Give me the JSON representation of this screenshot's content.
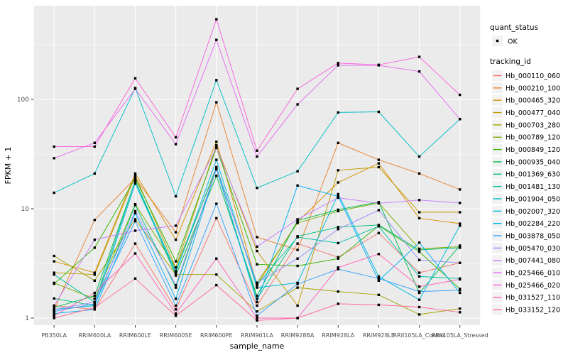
{
  "figure": {
    "background": "#FFFFFF",
    "panel_fill": "#EBEBEB",
    "grid_color": "#FFFFFF",
    "tick_color": "#333333",
    "tick_label_color": "#4D4D4D",
    "point_color": "#000000"
  },
  "legend": {
    "quant_status_title": "quant_status",
    "quant_status_items": [
      {
        "label": "OK",
        "marker": "black-square"
      }
    ],
    "tracking_id_title": "tracking_id",
    "key_fill": "#F2F2F2"
  },
  "chart_data": {
    "type": "line",
    "title": "",
    "xlabel": "sample_name",
    "ylabel": "FPKM + 1",
    "y_scale": "log10",
    "ylim": [
      0.86,
      760
    ],
    "y_tick_values": [
      1,
      10,
      100
    ],
    "y_tick_labels": [
      "1",
      "10",
      "100"
    ],
    "y_minor_values": [
      3.1623,
      31.623,
      316.23
    ],
    "grid": true,
    "legend_position": "right",
    "point_shape": "square",
    "categories": [
      "PB350LA",
      "RRIM600LA",
      "RRIM600LE",
      "RRIM600SE",
      "RRIM600PE",
      "RRIM901LA",
      "RRIM928BA",
      "RRIM928LA",
      "RRIM928LE",
      "RRII105LA_Control",
      "RRII105LA_Stressed"
    ],
    "series": [
      {
        "name": "Hb_000110_060",
        "color": "#F8766D",
        "values": [
          1.3,
          1.2,
          4.8,
          1.2,
          8.2,
          1.3,
          4.8,
          3.6,
          6.0,
          2.6,
          3.2
        ]
      },
      {
        "name": "Hb_000210_100",
        "color": "#EA8331",
        "values": [
          1.2,
          7.9,
          19,
          6.1,
          94,
          5.5,
          4.2,
          40,
          28,
          21,
          15
        ]
      },
      {
        "name": "Hb_000465_320",
        "color": "#D89000",
        "values": [
          3.3,
          2.6,
          21,
          5.2,
          41,
          2.0,
          7.6,
          17.4,
          26,
          8.2,
          7.3
        ]
      },
      {
        "name": "Hb_000477_040",
        "color": "#C09B00",
        "values": [
          2.6,
          2.5,
          20,
          2.9,
          38,
          4.1,
          1.3,
          22.5,
          24,
          9.3,
          9.3
        ]
      },
      {
        "name": "Hb_000703_280",
        "color": "#A3A500",
        "values": [
          3.7,
          2.2,
          8.0,
          2.5,
          2.5,
          1.15,
          1.9,
          1.75,
          1.63,
          1.08,
          1.22
        ]
      },
      {
        "name": "Hb_000789_120",
        "color": "#7CAE00",
        "values": [
          2.1,
          1.5,
          11,
          2.9,
          23,
          2.1,
          7.4,
          9.5,
          11.3,
          4.3,
          4.5
        ]
      },
      {
        "name": "Hb_000849_120",
        "color": "#39B600",
        "values": [
          2.06,
          4.4,
          19,
          3.3,
          36,
          3.1,
          3.0,
          3.5,
          7.0,
          4.05,
          1.85
        ]
      },
      {
        "name": "Hb_000935_040",
        "color": "#00BB4E",
        "values": [
          1.25,
          1.6,
          18,
          2.45,
          20,
          1.6,
          7.8,
          9.8,
          11.5,
          1.7,
          4.6
        ]
      },
      {
        "name": "Hb_001369_630",
        "color": "#00BF7D",
        "values": [
          1.51,
          1.3,
          10.8,
          1.9,
          23,
          1.5,
          5.6,
          6.8,
          7.1,
          4.2,
          4.4
        ]
      },
      {
        "name": "Hb_001481_130",
        "color": "#00C1A3",
        "values": [
          2.5,
          1.4,
          18,
          2.7,
          24,
          2.0,
          5.5,
          4.85,
          6.9,
          2.4,
          2.3
        ]
      },
      {
        "name": "Hb_001904_050",
        "color": "#00BFC4",
        "values": [
          14,
          21,
          127,
          13,
          150,
          15.5,
          22,
          76,
          77,
          30,
          66
        ]
      },
      {
        "name": "Hb_002007_320",
        "color": "#00BAE0",
        "values": [
          1.2,
          1.3,
          17,
          2.6,
          28,
          1.9,
          2.1,
          13.6,
          2.4,
          1.47,
          7.0
        ]
      },
      {
        "name": "Hb_002284_220",
        "color": "#00B0F6",
        "values": [
          1.1,
          1.2,
          9.1,
          1.5,
          23.5,
          1.4,
          16.3,
          13,
          2.2,
          4.9,
          1.7
        ]
      },
      {
        "name": "Hb_003878_050",
        "color": "#35A2FF",
        "values": [
          1.15,
          1.35,
          7.7,
          1.3,
          11.1,
          1.05,
          2.05,
          2.8,
          2.3,
          1.75,
          1.8
        ]
      },
      {
        "name": "Hb_005470_030",
        "color": "#9590FF",
        "values": [
          1.2,
          1.4,
          9.5,
          2.0,
          23,
          2.1,
          3.5,
          6.5,
          9.7,
          3.4,
          3.2
        ]
      },
      {
        "name": "Hb_007441_080",
        "color": "#C77CFF",
        "values": [
          1.3,
          5.2,
          6.3,
          7.0,
          36,
          4.5,
          8.0,
          12.6,
          11.2,
          12,
          11.3
        ]
      },
      {
        "name": "Hb_025466_010",
        "color": "#E76BF3",
        "values": [
          29,
          40,
          125,
          39,
          350,
          30,
          90,
          205,
          205,
          180,
          66
        ]
      },
      {
        "name": "Hb_025466_020",
        "color": "#FA62DB",
        "values": [
          37,
          37,
          156,
          45,
          540,
          34,
          125,
          215,
          207,
          245,
          110
        ]
      },
      {
        "name": "Hb_031527_110",
        "color": "#FF62BC",
        "values": [
          1.05,
          1.7,
          3.9,
          1.1,
          3.5,
          1.0,
          1.0,
          2.9,
          3.85,
          1.94,
          2.26
        ]
      },
      {
        "name": "Hb_033152_120",
        "color": "#FF6A98",
        "values": [
          1.0,
          1.25,
          2.3,
          1.05,
          2.0,
          0.95,
          1.0,
          1.35,
          1.32,
          1.26,
          1.13
        ]
      }
    ]
  }
}
